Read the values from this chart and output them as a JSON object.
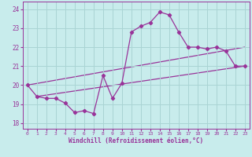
{
  "xlabel": "Windchill (Refroidissement éolien,°C)",
  "xlim": [
    -0.5,
    23.5
  ],
  "ylim": [
    17.7,
    24.4
  ],
  "yticks": [
    18,
    19,
    20,
    21,
    22,
    23,
    24
  ],
  "xticks": [
    0,
    1,
    2,
    3,
    4,
    5,
    6,
    7,
    8,
    9,
    10,
    11,
    12,
    13,
    14,
    15,
    16,
    17,
    18,
    19,
    20,
    21,
    22,
    23
  ],
  "background_color": "#c8ecec",
  "grid_color": "#aad4d4",
  "line_color": "#993399",
  "hours": [
    0,
    1,
    2,
    3,
    4,
    5,
    6,
    7,
    8,
    9,
    10,
    11,
    12,
    13,
    14,
    15,
    16,
    17,
    18,
    19,
    20,
    21,
    22,
    23
  ],
  "temps": [
    20.0,
    19.4,
    19.3,
    19.3,
    19.05,
    18.55,
    18.65,
    18.5,
    20.5,
    19.3,
    20.1,
    22.8,
    23.1,
    23.3,
    23.85,
    23.7,
    22.8,
    22.0,
    22.0,
    21.9,
    22.0,
    21.8,
    21.0,
    21.0
  ],
  "line1_x": [
    1,
    23
  ],
  "line1_y": [
    19.4,
    21.0
  ],
  "line2_x": [
    0,
    23
  ],
  "line2_y": [
    20.0,
    22.0
  ]
}
